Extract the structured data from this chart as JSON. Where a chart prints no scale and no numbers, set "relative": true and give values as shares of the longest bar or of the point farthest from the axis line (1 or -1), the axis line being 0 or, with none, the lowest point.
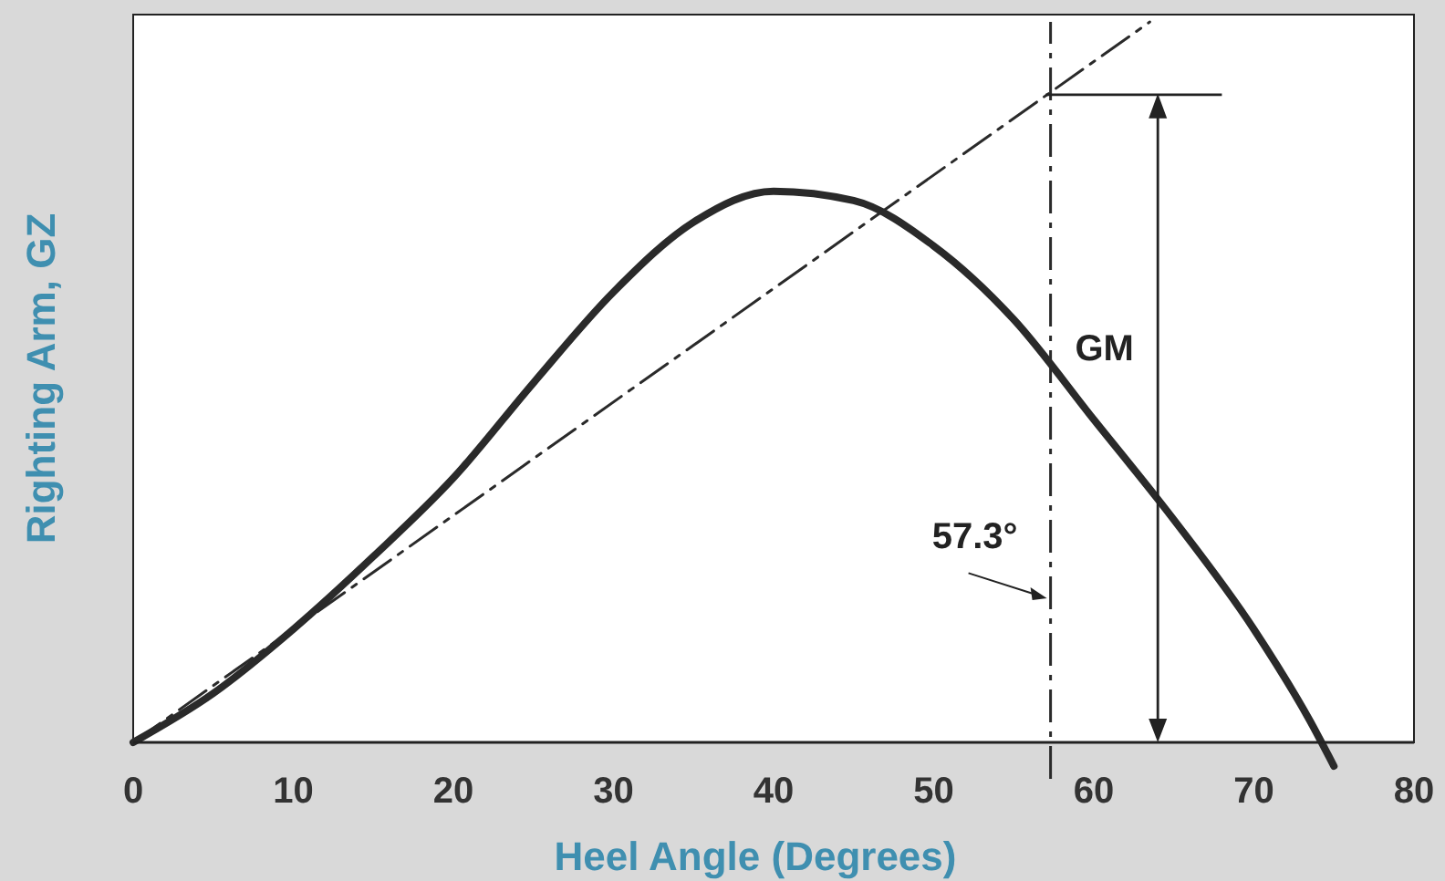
{
  "chart_data": {
    "type": "line",
    "xlabel": "Heel Angle (Degrees)",
    "ylabel": "Righting Arm, GZ",
    "relative": true,
    "xlim": [
      0,
      80
    ],
    "xticks": [
      0,
      10,
      20,
      30,
      40,
      50,
      60,
      70,
      80
    ],
    "grid": false,
    "marker": "none",
    "series": [
      {
        "color": "#2a2a2a",
        "x": [
          0,
          5,
          10,
          15,
          20,
          25,
          30,
          35,
          40,
          45,
          50,
          55,
          60,
          65,
          70,
          73.5,
          75
        ],
        "values": [
          0,
          0.068,
          0.157,
          0.258,
          0.367,
          0.499,
          0.625,
          0.722,
          0.765,
          0.752,
          0.689,
          0.587,
          0.448,
          0.309,
          0.157,
          0.03,
          -0.033
        ]
      },
      {
        "color": "#2a2a2a",
        "line_style": "dashed",
        "x": [
          0,
          63.5
        ],
        "values": [
          0,
          1
        ]
      }
    ],
    "ref_lines": [
      {
        "axis": "x",
        "value": 57.3,
        "label": "57.3°",
        "line_style": "dashed",
        "color": "#2a2a2a"
      }
    ],
    "annotations": [
      "GM"
    ]
  }
}
